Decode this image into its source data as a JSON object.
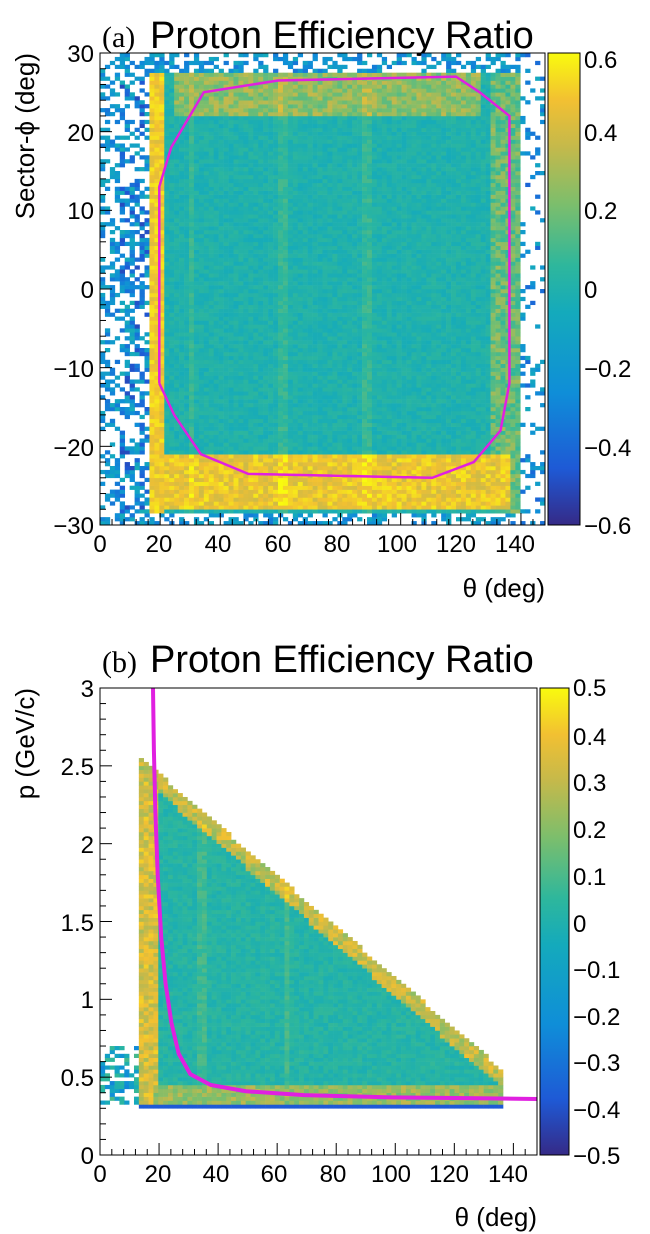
{
  "chart_data": [
    {
      "type": "heatmap",
      "tag": "(a)",
      "title": "Proton Efficiency Ratio",
      "xlabel": "θ (deg)",
      "ylabel": "Sector-ϕ (deg)",
      "xlim": [
        0,
        150
      ],
      "ylim": [
        -30,
        30
      ],
      "xticks": [
        "0",
        "20",
        "40",
        "60",
        "80",
        "100",
        "120",
        "140"
      ],
      "yticks": [
        "30",
        "20",
        "10",
        "0",
        "−10",
        "−20",
        "−30"
      ],
      "colorbar": {
        "min": -0.6,
        "max": 0.6,
        "ticks": [
          "0.6",
          "0.4",
          "0.2",
          "0",
          "−0.2",
          "−0.4",
          "−0.6"
        ]
      },
      "cut_color": "#e020e0",
      "cut_contour": [
        [
          20,
          -12
        ],
        [
          20,
          13
        ],
        [
          24,
          18
        ],
        [
          35,
          25
        ],
        [
          60,
          26.5
        ],
        [
          120,
          27
        ],
        [
          128,
          25
        ],
        [
          138,
          22
        ],
        [
          138,
          -12
        ],
        [
          135,
          -18
        ],
        [
          126,
          -22
        ],
        [
          112,
          -24
        ],
        [
          50,
          -23.5
        ],
        [
          34,
          -21
        ],
        [
          25,
          -16
        ],
        [
          20,
          -12
        ]
      ]
    },
    {
      "type": "heatmap",
      "tag": "(b)",
      "title": "Proton Efficiency Ratio",
      "xlabel": "θ (deg)",
      "ylabel": "p (GeV/c)",
      "xlim": [
        0,
        150
      ],
      "ylim": [
        0,
        3
      ],
      "xticks": [
        "0",
        "20",
        "40",
        "60",
        "80",
        "100",
        "120",
        "140"
      ],
      "yticks": [
        "3",
        "2.5",
        "2",
        "1.5",
        "1",
        "0.5",
        "0"
      ],
      "colorbar": {
        "min": -0.5,
        "max": 0.5,
        "ticks": [
          "0.5",
          "0.4",
          "0.3",
          "0.2",
          "0.1",
          "0",
          "−0.1",
          "−0.2",
          "−0.3",
          "−0.4",
          "−0.5"
        ]
      },
      "cut_color": "#e020e0",
      "cut_curve": [
        [
          18.2,
          3.0
        ],
        [
          18.5,
          2.6
        ],
        [
          19,
          2.2
        ],
        [
          19.8,
          1.8
        ],
        [
          21,
          1.4
        ],
        [
          22.5,
          1.1
        ],
        [
          24.5,
          0.85
        ],
        [
          27,
          0.65
        ],
        [
          31,
          0.52
        ],
        [
          38,
          0.45
        ],
        [
          50,
          0.41
        ],
        [
          70,
          0.385
        ],
        [
          100,
          0.37
        ],
        [
          130,
          0.365
        ],
        [
          150,
          0.36
        ]
      ]
    }
  ]
}
